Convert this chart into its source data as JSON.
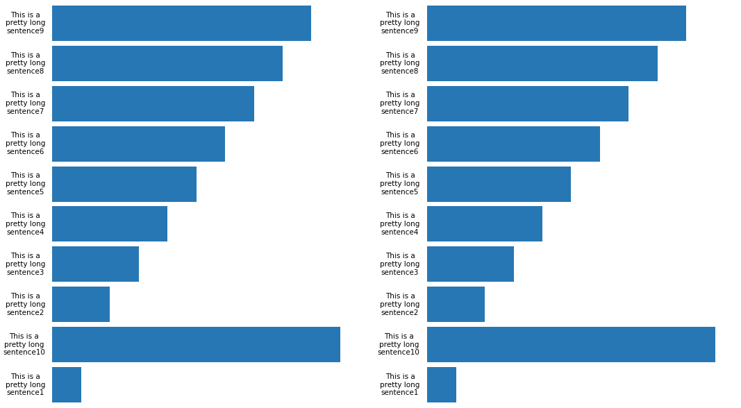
{
  "labels_left": [
    "This is a\npretty long\nsentence9",
    "This is a\npretty long\nsentence8",
    "This is a\npretty long\nsentence7",
    "This is a\npretty long\nsentence6",
    "This is a\npretty long\nsentence5",
    "This is a\npretty long\nsentence4",
    "This is a\npretty long\nsentence3",
    "This is a\npretty long\nsentence2",
    "This is a\npretty long\nsentence10",
    "This is a\npretty long\nsentence1"
  ],
  "values_left": [
    9,
    8,
    7,
    6,
    5,
    4,
    3,
    2,
    10,
    1
  ],
  "labels_right": [
    "This is a\npretty long\nsentence9",
    "This is a\npretty long\nsentence8",
    "This is a\npretty long\nsentence7",
    "This is a\npretty long\nsentence6",
    "This is a\npretty long\nsentence5",
    "This is a\npretty long\nsentence4",
    "This is a\npretty long\nsentence3",
    "This is a\npretty long\nsentence2",
    "This is a\npretty long\nsentence10",
    "This is a\npretty long\nsentence1"
  ],
  "values_right": [
    9,
    8,
    7,
    6,
    5,
    4,
    3,
    2,
    10,
    1
  ],
  "bar_color": "#2777b4",
  "background_color": "#ffffff",
  "label_fontsize": 7.5,
  "bar_height": 0.88,
  "xlim_factor": 1.08
}
